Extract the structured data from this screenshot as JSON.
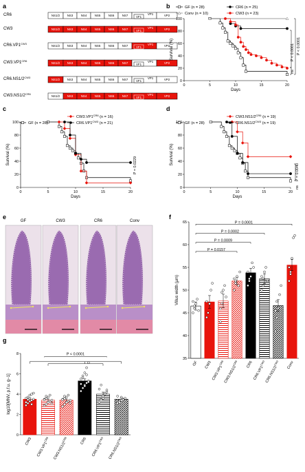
{
  "colors": {
    "red": "#e8140c",
    "black": "#000000",
    "grey": "#7f7f7f",
    "white": "#ffffff"
  },
  "panel_labels": [
    "a",
    "b",
    "c",
    "d",
    "e",
    "f",
    "g"
  ],
  "panel_a": {
    "segment_labels": [
      "NS1/2",
      "NS3",
      "NS4",
      "NS5",
      "NS6",
      "NS7",
      "VP1",
      "VP2"
    ],
    "vf1_label": "VF1",
    "constructs": [
      {
        "name": "CR6",
        "super": "",
        "red": [
          false,
          false,
          false,
          false,
          false,
          false,
          false,
          false
        ]
      },
      {
        "name": "CW3",
        "super": "",
        "red": [
          true,
          true,
          true,
          true,
          true,
          true,
          true,
          true
        ]
      },
      {
        "name": "CR6.VP1",
        "super": "CW3",
        "red": [
          false,
          false,
          false,
          false,
          false,
          false,
          true,
          false
        ]
      },
      {
        "name": "CW3.VP1",
        "super": "CR6",
        "red": [
          true,
          true,
          true,
          true,
          true,
          true,
          false,
          true
        ]
      },
      {
        "name": "CR6.NS1/2",
        "super": "CW3",
        "red": [
          true,
          false,
          false,
          false,
          false,
          false,
          false,
          false
        ]
      },
      {
        "name": "CW3.NS1/2",
        "super": "CR6",
        "red": [
          false,
          true,
          true,
          true,
          true,
          true,
          true,
          true
        ]
      }
    ]
  },
  "panel_b": {
    "ylabel": "Survival (%)",
    "xlabel": "Days",
    "yticks": [
      "0",
      "20",
      "40",
      "60",
      "80",
      "100"
    ],
    "xticks": [
      "0",
      "5",
      "10",
      "15",
      "20"
    ],
    "legend": [
      {
        "label": "GF",
        "n": "(n = 28)"
      },
      {
        "label": "Conv",
        "n": "(n = 10)"
      },
      {
        "label": "CR6",
        "n": "(n = 25)"
      },
      {
        "label": "CW3",
        "n": "(n = 23)"
      }
    ],
    "stats": [
      "P < 0.0001",
      "P < 0.0001",
      "ns"
    ]
  },
  "panel_c": {
    "ylabel": "Survival (%)",
    "xlabel": "Days",
    "yticks": [
      "0",
      "20",
      "40",
      "60",
      "80",
      "100"
    ],
    "xticks": [
      "0",
      "5",
      "10",
      "15",
      "20"
    ],
    "legend": [
      {
        "label": "GF",
        "n": "(n = 28)"
      },
      {
        "label": "CW3.VP1",
        "sup": "CR6",
        "n": "(n = 16)"
      },
      {
        "label": "CR6.VP1",
        "sup": "CW3",
        "n": "(n = 21)"
      }
    ],
    "stats": [
      "P = 0.0229"
    ]
  },
  "panel_d": {
    "ylabel": "Survival (%)",
    "xlabel": "Days",
    "yticks": [
      "0",
      "20",
      "40",
      "60",
      "80",
      "100"
    ],
    "xticks": [
      "0",
      "5",
      "10",
      "15",
      "20"
    ],
    "legend": [
      {
        "label": "GF",
        "n": "(n = 28)"
      },
      {
        "label": "CW3.NS1/2",
        "sup": "CR6",
        "n": "(n = 19)"
      },
      {
        "label": "CR6.NS1/2",
        "sup": "CW3",
        "n": "(n = 19)"
      }
    ],
    "stats": [
      "P = 0.0040",
      "ns"
    ]
  },
  "panel_e": {
    "titles": [
      "GF",
      "CW3",
      "CR6",
      "Conv"
    ]
  },
  "panel_f": {
    "ylabel": "Villus width (µm)",
    "yticks": [
      "35",
      "40",
      "45",
      "50",
      "55",
      "60",
      "65"
    ],
    "categories": [
      "GF",
      "CW3",
      "CW3.VP1CR6",
      "CW3.NS1/2CR6",
      "CR6",
      "CR6.VP1CW3",
      "CR6.NS1/2CW3",
      "Conv"
    ],
    "stats": [
      "P = 0.0001",
      "P = 0.0002",
      "P = 0.0009",
      "P = 0.0157"
    ]
  },
  "panel_g": {
    "ylabel": "log10[MNV, p.f.u. g−1]",
    "yticks": [
      "0",
      "2",
      "4",
      "6",
      "8"
    ],
    "categories": [
      "CW3",
      "CW3.VP1CR6",
      "CW3.NS1/2CR6",
      "CR6",
      "CR6.VP1CW3",
      "CR6.NS1/2CW3"
    ],
    "stats": [
      "P < 0.0001"
    ]
  },
  "chart_data": [
    {
      "panel": "b",
      "type": "line",
      "xlabel": "Days",
      "ylabel": "Survival (%)",
      "xlim": [
        0,
        20
      ],
      "ylim": [
        0,
        100
      ],
      "series": [
        {
          "name": "GF",
          "x": [
            5,
            7,
            7.5,
            8,
            8.5,
            9,
            9.5,
            10,
            10.5,
            11,
            11.5,
            12,
            20
          ],
          "y": [
            100,
            93,
            85,
            78,
            64,
            60,
            56,
            52,
            45,
            37,
            25,
            15,
            10
          ]
        },
        {
          "name": "Conv",
          "x": [
            5,
            20
          ],
          "y": [
            100,
            100
          ]
        },
        {
          "name": "CR6",
          "x": [
            9,
            10,
            11,
            20
          ],
          "y": [
            92,
            88,
            84,
            84
          ]
        },
        {
          "name": "CW3",
          "x": [
            8,
            9,
            10,
            10.5,
            11,
            11.5,
            12,
            12.5,
            13,
            14,
            15,
            16,
            17,
            18,
            19,
            20
          ],
          "y": [
            100,
            95,
            90,
            70,
            62,
            55,
            50,
            45,
            42,
            40,
            37,
            33,
            28,
            25,
            22,
            20
          ]
        }
      ]
    },
    {
      "panel": "c",
      "type": "line",
      "xlabel": "Days",
      "ylabel": "Survival (%)",
      "xlim": [
        0,
        20
      ],
      "ylim": [
        0,
        100
      ],
      "series": [
        {
          "name": "GF",
          "x": [
            5,
            7,
            7.5,
            8,
            8.5,
            9,
            9.5,
            10,
            10.5,
            11,
            11.5,
            12,
            20
          ],
          "y": [
            100,
            93,
            85,
            78,
            64,
            60,
            56,
            52,
            45,
            37,
            25,
            15,
            10
          ]
        },
        {
          "name": "CW3.VP1CR6",
          "x": [
            7,
            8,
            9,
            10,
            11,
            12,
            20
          ],
          "y": [
            100,
            90,
            75,
            50,
            25,
            7,
            7
          ]
        },
        {
          "name": "CR6.VP1CW3",
          "x": [
            8,
            9,
            10,
            11,
            12,
            20
          ],
          "y": [
            100,
            80,
            52,
            43,
            38,
            38
          ]
        }
      ]
    },
    {
      "panel": "d",
      "type": "line",
      "xlabel": "Days",
      "ylabel": "Survival (%)",
      "xlim": [
        0,
        20
      ],
      "ylim": [
        0,
        100
      ],
      "series": [
        {
          "name": "GF",
          "x": [
            5,
            7,
            7.5,
            8,
            8.5,
            9,
            9.5,
            10,
            10.5,
            11,
            11.5,
            12,
            20
          ],
          "y": [
            100,
            93,
            85,
            78,
            64,
            60,
            56,
            52,
            45,
            37,
            25,
            15,
            10
          ]
        },
        {
          "name": "CW3.NS1/2CR6",
          "x": [
            9,
            10,
            11,
            12,
            20
          ],
          "y": [
            100,
            85,
            68,
            47,
            47
          ]
        },
        {
          "name": "CR6.NS1/2CW3",
          "x": [
            8,
            9,
            10,
            11,
            12,
            20
          ],
          "y": [
            100,
            78,
            52,
            38,
            21,
            21
          ]
        }
      ]
    },
    {
      "panel": "f",
      "type": "bar",
      "ylabel": "Villus width (µm)",
      "ylim": [
        35,
        65
      ],
      "categories": [
        "GF",
        "CW3",
        "CW3.VP1CR6",
        "CW3.NS1/2CR6",
        "CR6",
        "CR6.VP1CW3",
        "CR6.NS1/2CW3",
        "Conv"
      ],
      "values": [
        46.5,
        47.4,
        47.6,
        52.0,
        53.8,
        52.5,
        46.6,
        55.5
      ],
      "errors": [
        0.9,
        1.4,
        1.5,
        0.8,
        1.0,
        1.1,
        1.3,
        1.2
      ],
      "points": [
        [
          45,
          46,
          47,
          48,
          45.5,
          47.5,
          46.5
        ],
        [
          44,
          45,
          47,
          50,
          51.5,
          47.5
        ],
        [
          43,
          47,
          50,
          51,
          48.5,
          46,
          49.5
        ],
        [
          50,
          52,
          53,
          51,
          54,
          52.5,
          51.5
        ],
        [
          51,
          52,
          53,
          56,
          55,
          54,
          52.5
        ],
        [
          50,
          51,
          54,
          55,
          52,
          53,
          52.5
        ],
        [
          41,
          44,
          46,
          49,
          51,
          45.5,
          47.5
        ],
        [
          52,
          54,
          57,
          61.5,
          62,
          55,
          53.5
        ]
      ]
    },
    {
      "panel": "g",
      "type": "bar",
      "ylabel": "log10[MNV, p.f.u. g−1]",
      "ylim": [
        0,
        8
      ],
      "categories": [
        "CW3",
        "CW3.VP1CR6",
        "CW3.NS1/2CR6",
        "CR6",
        "CR6.VP1CW3",
        "CR6.NS1/2CW3"
      ],
      "values": [
        3.5,
        3.4,
        3.4,
        5.3,
        4.0,
        3.5
      ],
      "errors": [
        0.15,
        0.12,
        0.12,
        0.2,
        0.2,
        0.12
      ],
      "points": [
        [
          2.9,
          3.1,
          3.3,
          3.4,
          3.5,
          3.6,
          3.7,
          3.9,
          4.0,
          4.1,
          3.2,
          3.45,
          3.55,
          3.0
        ],
        [
          2.9,
          3.0,
          3.2,
          3.3,
          3.4,
          3.5,
          3.6,
          3.7,
          3.9,
          3.1,
          3.45,
          3.8
        ],
        [
          2.8,
          3.0,
          3.2,
          3.3,
          3.4,
          3.5,
          3.6,
          3.7,
          3.9,
          3.1,
          3.45,
          3.8
        ],
        [
          4.3,
          4.6,
          4.9,
          5.1,
          5.3,
          5.5,
          5.8,
          6.1,
          6.6,
          7.1,
          5.0,
          5.6,
          4.8,
          5.9,
          5.2
        ],
        [
          3.2,
          3.5,
          3.8,
          4.0,
          4.2,
          4.5,
          4.9,
          3.6,
          4.1,
          4.4
        ],
        [
          3.1,
          3.3,
          3.4,
          3.5,
          3.6,
          3.8,
          3.2,
          3.7,
          3.45
        ]
      ]
    }
  ]
}
